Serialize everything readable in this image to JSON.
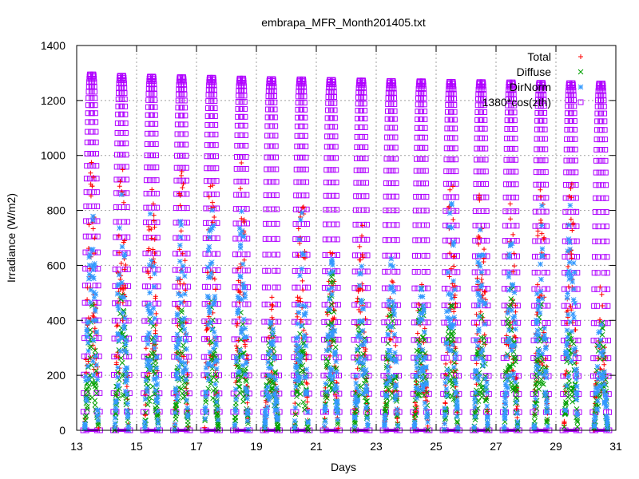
{
  "chart_data": {
    "type": "scatter",
    "title": "embrapa_MFR_Month201405.txt",
    "xlabel": "Days",
    "ylabel": "Irradiance (W/m2)",
    "xlim": [
      13,
      31
    ],
    "ylim": [
      0,
      1400
    ],
    "x_ticks": [
      13,
      15,
      17,
      19,
      21,
      23,
      25,
      27,
      29,
      31
    ],
    "y_ticks": [
      0,
      200,
      400,
      600,
      800,
      1000,
      1200,
      1400
    ],
    "grid": true,
    "legend_position": "top-right",
    "days": [
      13,
      14,
      15,
      16,
      17,
      18,
      19,
      20,
      21,
      22,
      23,
      24,
      25,
      26,
      27,
      28,
      29,
      30
    ],
    "series": [
      {
        "name": "Total",
        "color": "#ff0000",
        "marker": "plus",
        "daily_peak": [
          1010,
          1000,
          960,
          990,
          1010,
          980,
          500,
          990,
          720,
          800,
          600,
          580,
          990,
          990,
          860,
          970,
          960,
          530
        ]
      },
      {
        "name": "Diffuse",
        "color": "#00a000",
        "marker": "cross",
        "daily_peak": [
          460,
          500,
          450,
          440,
          490,
          440,
          400,
          400,
          600,
          500,
          490,
          520,
          470,
          420,
          600,
          470,
          440,
          420
        ]
      },
      {
        "name": "DirNorm",
        "color": "#3399ff",
        "marker": "star",
        "daily_peak": [
          870,
          860,
          840,
          830,
          860,
          830,
          420,
          800,
          650,
          600,
          640,
          560,
          840,
          830,
          720,
          840,
          870,
          410
        ]
      },
      {
        "name": "1380*cos(zth)",
        "color": "#b000ff",
        "marker": "square",
        "daily_peak": [
          1295,
          1290,
          1287,
          1285,
          1283,
          1280,
          1278,
          1277,
          1275,
          1273,
          1271,
          1270,
          1268,
          1267,
          1266,
          1264,
          1263,
          1262
        ]
      }
    ]
  }
}
